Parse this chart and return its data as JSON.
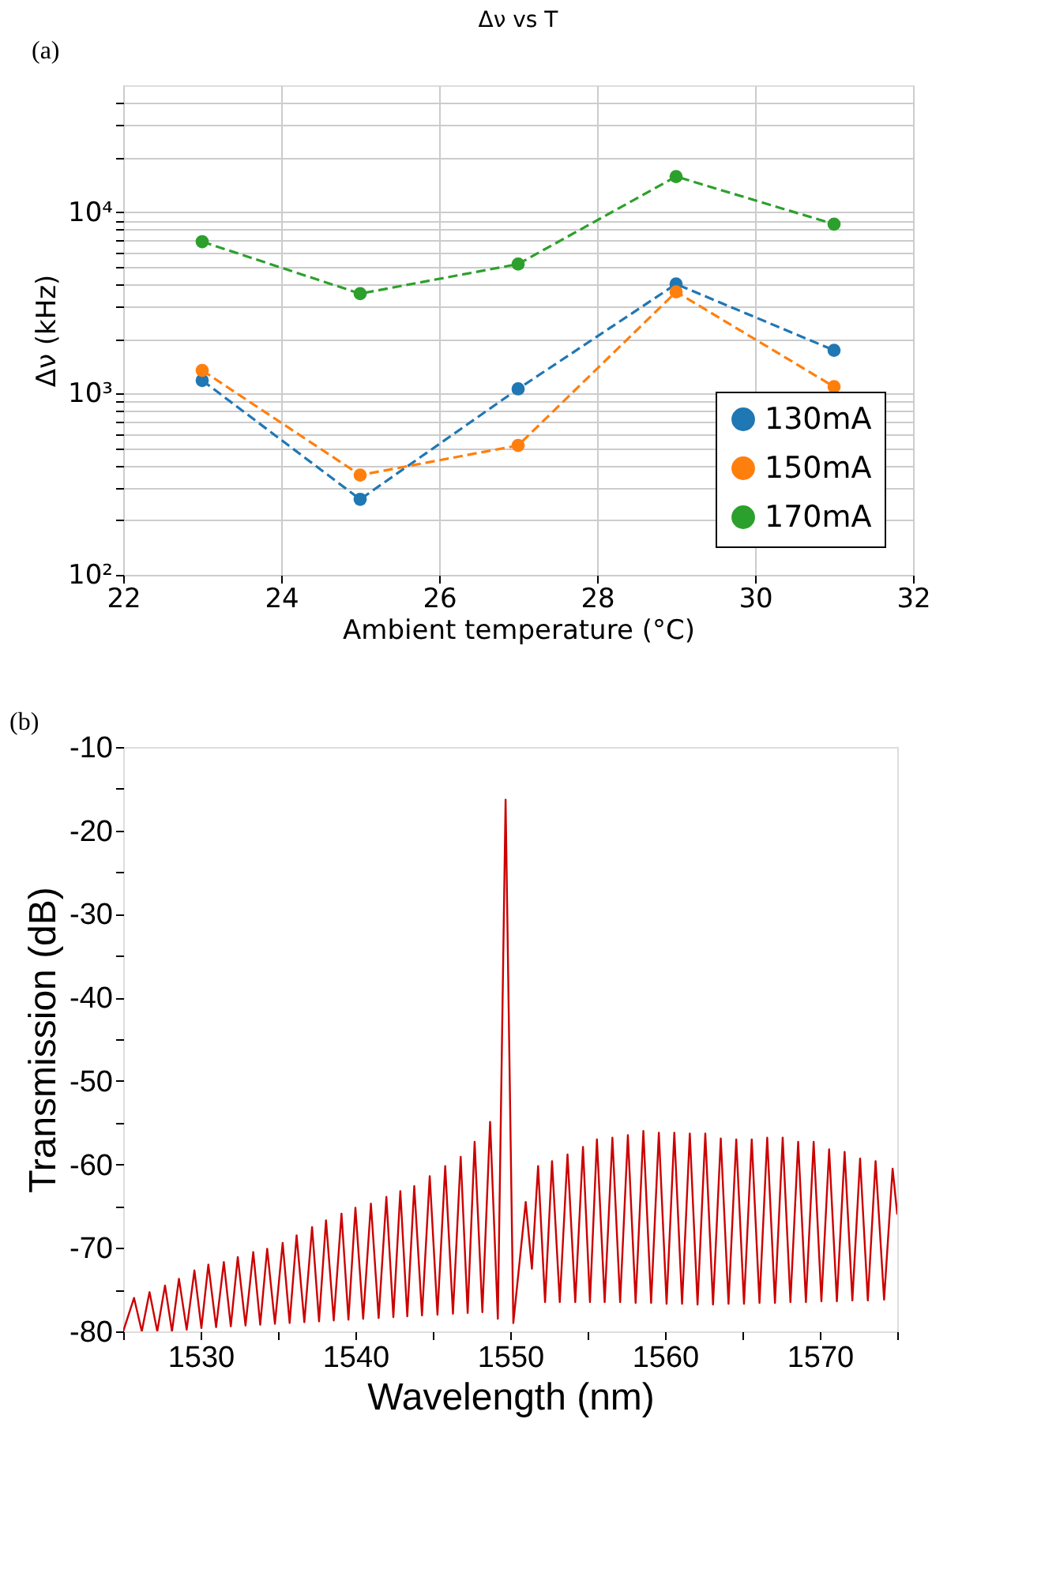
{
  "chart_data": [
    {
      "type": "line",
      "title": "Δν vs T",
      "xlabel": "Ambient temperature (°C)",
      "ylabel": "Δν (kHz)",
      "annotations": [
        "(a)"
      ],
      "x": [
        23,
        25,
        27,
        29,
        31
      ],
      "log": "y",
      "grid": true,
      "legend": "bottom right",
      "marker": "circle",
      "line_style": "dashed",
      "xlim": [
        22,
        32
      ],
      "xticks": [
        22,
        24,
        26,
        28,
        30,
        32
      ],
      "ylim": [
        100,
        50000
      ],
      "yticks": [
        {
          "value": 100,
          "label": "10²"
        },
        {
          "value": 200,
          "label": null
        },
        {
          "value": 300,
          "label": null
        },
        {
          "value": 400,
          "label": null
        },
        {
          "value": 500,
          "label": null
        },
        {
          "value": 600,
          "label": null
        },
        {
          "value": 700,
          "label": null
        },
        {
          "value": 800,
          "label": null
        },
        {
          "value": 900,
          "label": null
        },
        {
          "value": 1000,
          "label": "10³"
        },
        {
          "value": 2000,
          "label": null
        },
        {
          "value": 3000,
          "label": null
        },
        {
          "value": 4000,
          "label": null
        },
        {
          "value": 5000,
          "label": null
        },
        {
          "value": 6000,
          "label": null
        },
        {
          "value": 7000,
          "label": null
        },
        {
          "value": 8000,
          "label": null
        },
        {
          "value": 9000,
          "label": null
        },
        {
          "value": 10000,
          "label": "10⁴"
        },
        {
          "value": 20000,
          "label": null
        },
        {
          "value": 30000,
          "label": null
        },
        {
          "value": 40000,
          "label": null
        }
      ],
      "series": [
        {
          "name": "130mA",
          "color": "#1f77b4",
          "values": [
            1180,
            261,
            1060,
            4010,
            1730
          ]
        },
        {
          "name": "150mA",
          "color": "#ff7f0e",
          "values": [
            1340,
            355,
            517,
            3630,
            1090
          ]
        },
        {
          "name": "170mA",
          "color": "#2ca02c",
          "values": [
            6870,
            3550,
            5170,
            15700,
            8580
          ]
        }
      ]
    },
    {
      "type": "line",
      "xlabel": "Wavelength (nm)",
      "ylabel": "Transmission (dB)",
      "annotations": [
        "(b)"
      ],
      "grid": false,
      "xlim": [
        1525,
        1575
      ],
      "xticks": [
        {
          "value": 1525,
          "label": null
        },
        1530,
        {
          "value": 1535,
          "label": null
        },
        1540,
        {
          "value": 1545,
          "label": null
        },
        1550,
        {
          "value": 1555,
          "label": null
        },
        1560,
        {
          "value": 1565,
          "label": null
        },
        1570,
        {
          "value": 1575,
          "label": null
        }
      ],
      "ylim": [
        -80,
        -10
      ],
      "yticks": [
        -80,
        {
          "value": -75,
          "label": null
        },
        -70,
        {
          "value": -65,
          "label": null
        },
        -60,
        {
          "value": -55,
          "label": null
        },
        -50,
        {
          "value": -45,
          "label": null
        },
        -40,
        {
          "value": -35,
          "label": null
        },
        -30,
        {
          "value": -25,
          "label": null
        },
        -20,
        {
          "value": -15,
          "label": null
        },
        -10
      ],
      "series": [
        {
          "color": "#cc0000",
          "x": [
            1525.0,
            1525.7,
            1526.2,
            1526.7,
            1527.2,
            1527.7,
            1528.15,
            1528.6,
            1529.1,
            1529.6,
            1530.05,
            1530.5,
            1531.0,
            1531.5,
            1531.95,
            1532.4,
            1532.9,
            1533.4,
            1533.85,
            1534.3,
            1534.8,
            1535.3,
            1535.75,
            1536.2,
            1536.7,
            1537.2,
            1537.65,
            1538.1,
            1538.6,
            1539.1,
            1539.55,
            1540.0,
            1540.5,
            1541.0,
            1541.5,
            1542.0,
            1542.45,
            1542.9,
            1543.35,
            1543.8,
            1544.3,
            1544.8,
            1545.3,
            1545.8,
            1546.3,
            1546.8,
            1547.25,
            1547.7,
            1548.2,
            1548.7,
            1549.2,
            1549.7,
            1550.2,
            1551.0,
            1551.4,
            1551.8,
            1552.25,
            1552.7,
            1553.2,
            1553.7,
            1554.2,
            1554.7,
            1555.15,
            1555.6,
            1556.1,
            1556.6,
            1557.1,
            1557.6,
            1558.1,
            1558.6,
            1559.1,
            1559.6,
            1560.1,
            1560.6,
            1561.1,
            1561.6,
            1562.1,
            1562.6,
            1563.1,
            1563.6,
            1564.1,
            1564.6,
            1565.1,
            1565.6,
            1566.1,
            1566.6,
            1567.1,
            1567.6,
            1568.1,
            1568.6,
            1569.1,
            1569.6,
            1570.1,
            1570.6,
            1571.1,
            1571.6,
            1572.1,
            1572.6,
            1573.1,
            1573.6,
            1574.15,
            1574.7,
            1575.0
          ],
          "values": [
            -80,
            -76.0,
            -80,
            -75.3,
            -80,
            -74.5,
            -80,
            -73.7,
            -79.8,
            -72.7,
            -79.6,
            -72.0,
            -79.5,
            -71.7,
            -79.4,
            -71.1,
            -79.3,
            -70.5,
            -79.2,
            -70.1,
            -79.1,
            -69.4,
            -79.0,
            -68.5,
            -78.9,
            -67.5,
            -78.8,
            -66.7,
            -78.7,
            -65.9,
            -78.6,
            -65.2,
            -78.5,
            -64.7,
            -78.4,
            -63.9,
            -78.3,
            -63.2,
            -78.2,
            -62.6,
            -78.1,
            -61.4,
            -78.0,
            -60.2,
            -77.9,
            -59.1,
            -77.8,
            -57.3,
            -77.7,
            -54.9,
            -78.5,
            -16.3,
            -79.0,
            -64.5,
            -72.5,
            -60.2,
            -76.5,
            -59.6,
            -76.5,
            -58.8,
            -76.5,
            -57.9,
            -76.5,
            -57.0,
            -76.5,
            -56.8,
            -76.5,
            -56.5,
            -76.6,
            -56.0,
            -76.6,
            -56.2,
            -76.7,
            -56.2,
            -76.7,
            -56.3,
            -76.8,
            -56.3,
            -76.8,
            -56.9,
            -76.7,
            -57.0,
            -76.7,
            -57.0,
            -76.6,
            -56.8,
            -76.6,
            -56.8,
            -76.5,
            -57.3,
            -76.5,
            -57.3,
            -76.4,
            -58.2,
            -76.4,
            -58.5,
            -76.3,
            -59.3,
            -76.3,
            -59.6,
            -76.2,
            -60.5,
            -66.0
          ]
        }
      ]
    }
  ]
}
